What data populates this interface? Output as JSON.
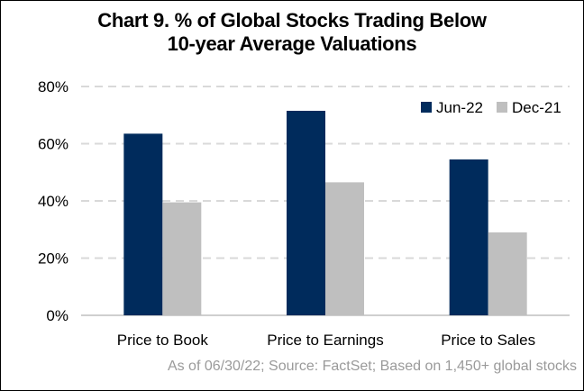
{
  "chart_data": {
    "type": "bar",
    "title": "Chart 9. % of Global Stocks Trading Below 10-year Average Valuations",
    "title_lines": [
      "Chart 9. % of Global Stocks Trading Below",
      "10-year Average Valuations"
    ],
    "categories": [
      "Price to Book",
      "Price to Earnings",
      "Price to Sales"
    ],
    "series": [
      {
        "name": "Jun-22",
        "color": "#002b5c",
        "values": [
          63.5,
          71.5,
          54.5
        ]
      },
      {
        "name": "Dec-21",
        "color": "#bfbfbf",
        "values": [
          39.5,
          46.5,
          29
        ]
      }
    ],
    "ylim": [
      0,
      80
    ],
    "yticks": [
      0,
      20,
      40,
      60,
      80
    ],
    "ytick_labels": [
      "0%",
      "20%",
      "40%",
      "60%",
      "80%"
    ],
    "xlabel": "",
    "ylabel": "",
    "grid": true,
    "legend_position": "top-right",
    "source_note": "As of 06/30/22; Source: FactSet; Based on 1,450+ global stocks"
  }
}
